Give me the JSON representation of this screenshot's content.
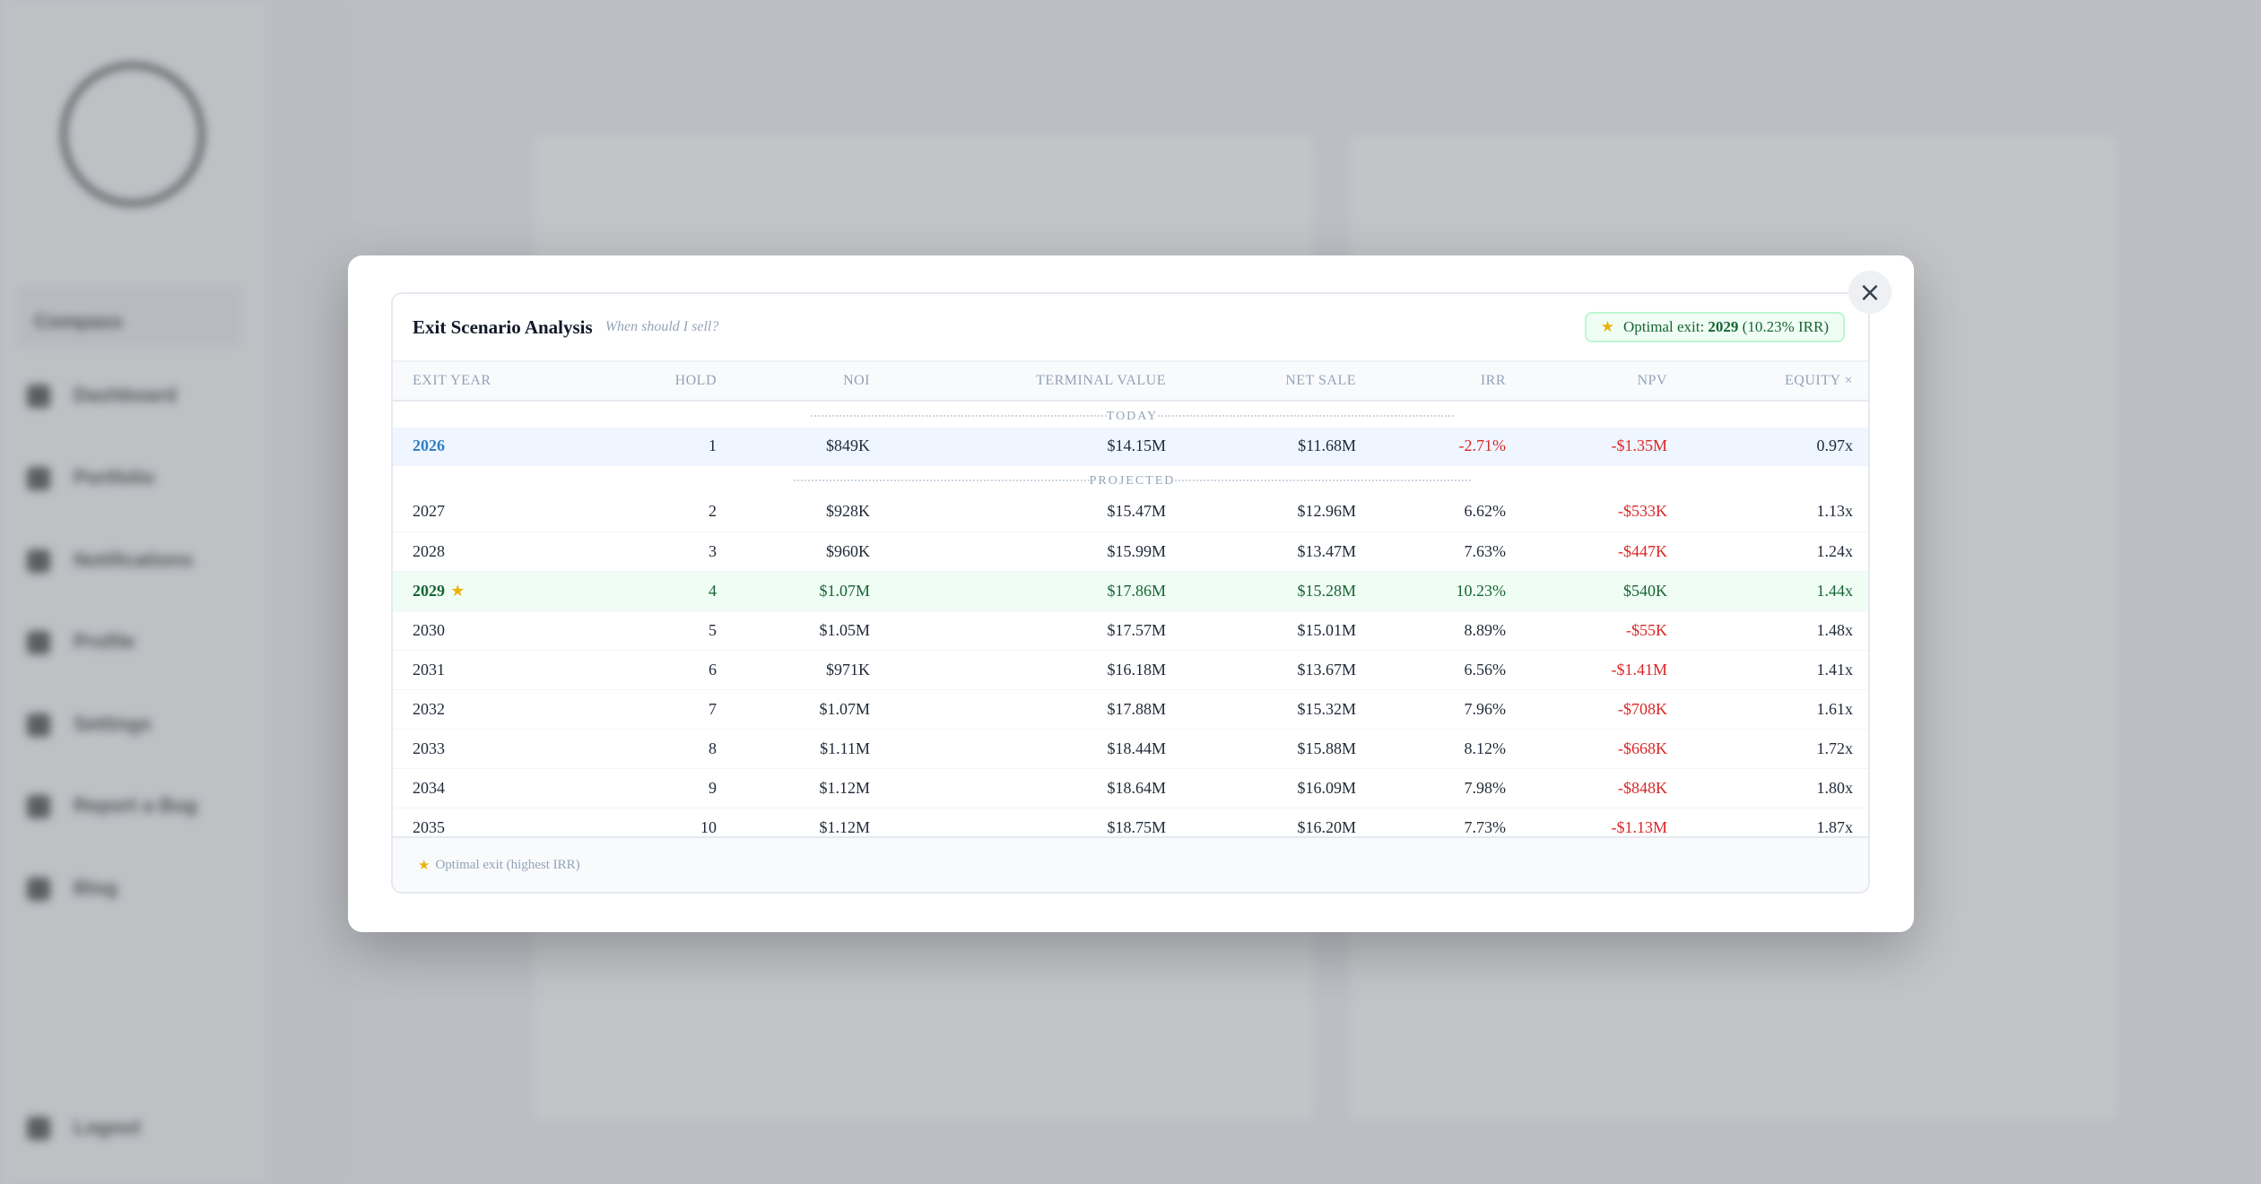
{
  "background": {
    "org_label": "Compass",
    "nav": [
      "Dashboard",
      "Portfolio",
      "Notifications",
      "Profile",
      "Settings",
      "Report a Bug",
      "Blog"
    ],
    "logout": "Logout"
  },
  "modal": {
    "title": "Exit Scenario Analysis",
    "subtitle": "When should I sell?",
    "badge_prefix": "Optimal exit:",
    "badge_year": "2029",
    "badge_irr": "(10.23% IRR)",
    "close_icon": "×",
    "columns": [
      "EXIT YEAR",
      "HOLD",
      "NOI",
      "TERMINAL VALUE",
      "NET SALE",
      "IRR",
      "NPV",
      "EQUITY ×"
    ],
    "section_today": "TODAY",
    "section_projected": "PROJECTED",
    "rows": [
      {
        "year": "2026",
        "hold": "1",
        "noi": "$849K",
        "tv": "$14.15M",
        "net": "$11.68M",
        "irr": "-2.71%",
        "npv": "-$1.35M",
        "eq": "0.97x"
      },
      {
        "year": "2027",
        "hold": "2",
        "noi": "$928K",
        "tv": "$15.47M",
        "net": "$12.96M",
        "irr": "6.62%",
        "npv": "-$533K",
        "eq": "1.13x"
      },
      {
        "year": "2028",
        "hold": "3",
        "noi": "$960K",
        "tv": "$15.99M",
        "net": "$13.47M",
        "irr": "7.63%",
        "npv": "-$447K",
        "eq": "1.24x"
      },
      {
        "year": "2029",
        "hold": "4",
        "noi": "$1.07M",
        "tv": "$17.86M",
        "net": "$15.28M",
        "irr": "10.23%",
        "npv": "$540K",
        "eq": "1.44x"
      },
      {
        "year": "2030",
        "hold": "5",
        "noi": "$1.05M",
        "tv": "$17.57M",
        "net": "$15.01M",
        "irr": "8.89%",
        "npv": "-$55K",
        "eq": "1.48x"
      },
      {
        "year": "2031",
        "hold": "6",
        "noi": "$971K",
        "tv": "$16.18M",
        "net": "$13.67M",
        "irr": "6.56%",
        "npv": "-$1.41M",
        "eq": "1.41x"
      },
      {
        "year": "2032",
        "hold": "7",
        "noi": "$1.07M",
        "tv": "$17.88M",
        "net": "$15.32M",
        "irr": "7.96%",
        "npv": "-$708K",
        "eq": "1.61x"
      },
      {
        "year": "2033",
        "hold": "8",
        "noi": "$1.11M",
        "tv": "$18.44M",
        "net": "$15.88M",
        "irr": "8.12%",
        "npv": "-$668K",
        "eq": "1.72x"
      },
      {
        "year": "2034",
        "hold": "9",
        "noi": "$1.12M",
        "tv": "$18.64M",
        "net": "$16.09M",
        "irr": "7.98%",
        "npv": "-$848K",
        "eq": "1.80x"
      },
      {
        "year": "2035",
        "hold": "10",
        "noi": "$1.12M",
        "tv": "$18.75M",
        "net": "$16.20M",
        "irr": "7.73%",
        "npv": "-$1.13M",
        "eq": "1.87x"
      }
    ],
    "footnote": "Optimal exit (highest IRR)",
    "colors": {
      "positive": "#166534",
      "negative": "#dc2626",
      "accent": "#2f7fc7",
      "star": "#eab308"
    }
  }
}
